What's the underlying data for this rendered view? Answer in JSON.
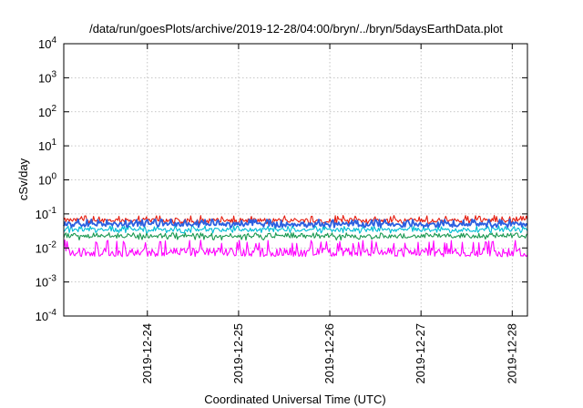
{
  "chart_data": {
    "type": "line",
    "title": "/data/run/goesPlots/archive/2019-12-28/04:00/bryn/../bryn/5daysEarthData.plot",
    "xlabel": "Coordinated Universal Time (UTC)",
    "ylabel": "cSv/day",
    "yscale": "log",
    "ylim": [
      0.0001,
      10000
    ],
    "xlim": [
      "2019-12-23T02:00",
      "2019-12-28T04:00"
    ],
    "grid": true,
    "y_ticks": [
      {
        "base": "10",
        "exp": "4"
      },
      {
        "base": "10",
        "exp": "3"
      },
      {
        "base": "10",
        "exp": "2"
      },
      {
        "base": "10",
        "exp": "1"
      },
      {
        "base": "10",
        "exp": "0"
      },
      {
        "base": "10",
        "exp": "-1"
      },
      {
        "base": "10",
        "exp": "-2"
      },
      {
        "base": "10",
        "exp": "-3"
      },
      {
        "base": "10",
        "exp": "-4"
      }
    ],
    "x_ticks": [
      "2019-12-24",
      "2019-12-25",
      "2019-12-26",
      "2019-12-27",
      "2019-12-28"
    ],
    "series": [
      {
        "color": "#e51e10",
        "typical": 0.065,
        "low": 0.05,
        "high": 0.09
      },
      {
        "color": "#1a9850",
        "typical": 0.022,
        "low": 0.017,
        "high": 0.028
      },
      {
        "color": "#00bcd4",
        "typical": 0.034,
        "low": 0.027,
        "high": 0.045
      },
      {
        "color": "#2b5fe0",
        "typical": 0.05,
        "low": 0.04,
        "high": 0.07
      },
      {
        "color": "#ff00ff",
        "typical": 0.0075,
        "low": 0.0055,
        "high": 0.017
      }
    ]
  }
}
